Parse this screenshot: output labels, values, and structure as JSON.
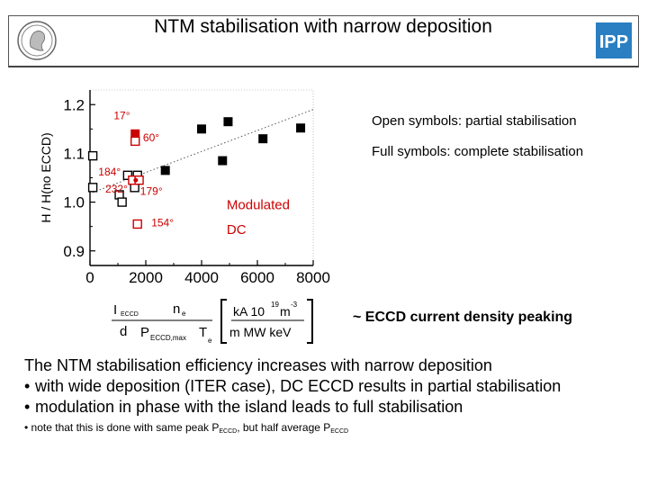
{
  "header": {
    "title": "NTM stabilisation with narrow deposition",
    "left_logo": "max-planck-minerva-logo",
    "right_logo": "ipp-logo",
    "right_logo_text": "IPP"
  },
  "chart_data": {
    "type": "scatter",
    "xlabel": "",
    "ylabel": "H / H(no ECCD)",
    "xlim": [
      0,
      8000
    ],
    "ylim": [
      0.87,
      1.23
    ],
    "xticks": [
      "0",
      "2000",
      "4000",
      "6000",
      "8000"
    ],
    "yticks": [
      "0.9",
      "1.0",
      "1.1",
      "1.2"
    ],
    "series": [
      {
        "marker": "open-square",
        "color": "#000000",
        "points": [
          [
            100,
            1.095
          ],
          [
            100,
            1.03
          ],
          [
            1350,
            1.055
          ],
          [
            1700,
            1.055
          ],
          [
            1050,
            1.015
          ],
          [
            1600,
            1.03
          ],
          [
            1150,
            1.0
          ]
        ]
      },
      {
        "marker": "filled-square",
        "color": "#000000",
        "points": [
          [
            2700,
            1.065
          ],
          [
            4000,
            1.15
          ],
          [
            4750,
            1.085
          ],
          [
            4950,
            1.165
          ],
          [
            6200,
            1.13
          ],
          [
            7550,
            1.152
          ]
        ]
      },
      {
        "marker": "filled-square",
        "color": "#cc0000",
        "points": [
          [
            1620,
            1.14
          ]
        ]
      },
      {
        "marker": "open-square",
        "color": "#cc0000",
        "points": [
          [
            1620,
            1.125
          ],
          [
            1530,
            1.045
          ],
          [
            1760,
            1.045
          ],
          [
            1700,
            0.955
          ]
        ]
      },
      {
        "marker": "dot",
        "color": "#cc0000",
        "points": [
          [
            1640,
            1.045
          ]
        ]
      }
    ],
    "trend_line": {
      "from": [
        100,
        1.02
      ],
      "to": [
        8000,
        1.19
      ],
      "style": "dotted",
      "color": "#555555"
    },
    "annotations": [
      {
        "text": "17°",
        "x": 850,
        "y": 1.17,
        "color": "#cc0000"
      },
      {
        "text": "60°",
        "x": 1900,
        "y": 1.125,
        "color": "#cc0000"
      },
      {
        "text": "184°",
        "x": 300,
        "y": 1.055,
        "color": "#cc0000"
      },
      {
        "text": "232°",
        "x": 550,
        "y": 1.02,
        "color": "#cc0000"
      },
      {
        "text": "179°",
        "x": 1800,
        "y": 1.015,
        "color": "#cc0000"
      },
      {
        "text": "154°",
        "x": 2200,
        "y": 0.95,
        "color": "#cc0000"
      },
      {
        "text": "Modulated",
        "x": 4900,
        "y": 0.985,
        "color": "#cc0000"
      },
      {
        "text": "DC",
        "x": 4900,
        "y": 0.935,
        "color": "#cc0000"
      }
    ]
  },
  "legend_notes": {
    "open": "Open symbols: partial stabilisation",
    "full": "Full symbols: complete stabilisation"
  },
  "formula": {
    "i": "I",
    "i_sub": "ECCD",
    "d": "d",
    "ne": "n",
    "ne_sub": "e",
    "p": "P",
    "p_sub": "ECCD,max",
    "te": "T",
    "te_sub": "e",
    "unit_num": "kA 10",
    "unit_exp1": "19",
    "unit_m": "m",
    "unit_exp2": "-3",
    "unit_den": "m MW keV"
  },
  "approx_text": "~ ECCD current density peaking",
  "body": {
    "line1": "The NTM stabilisation efficiency increases with narrow deposition",
    "bullet": "•",
    "line2": "with wide deposition (ITER case), DC ECCD results in partial stabilisation",
    "line3": "modulation in phase with the island leads to full stabilisation",
    "line4_pre": "note that this is done with same peak P",
    "line4_sub1": "ECCD",
    "line4_mid": ", but half average P",
    "line4_sub2": "ECCD"
  }
}
